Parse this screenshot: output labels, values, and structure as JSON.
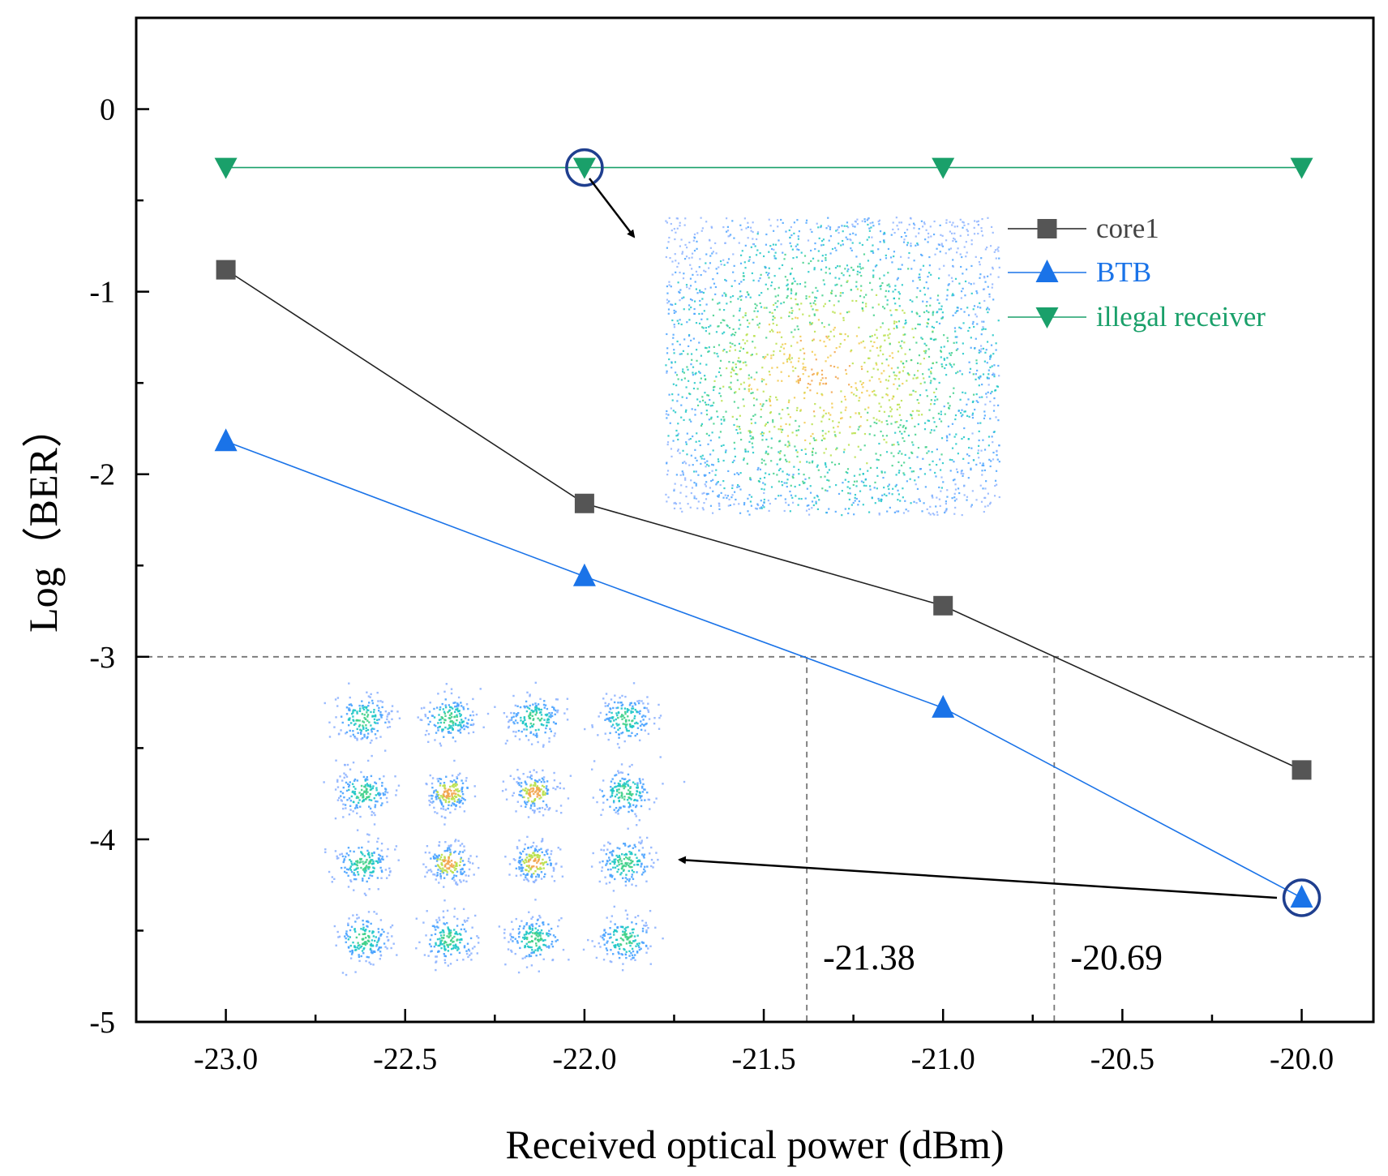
{
  "chart_data": {
    "type": "line",
    "title": "",
    "xlabel": "Received optical power (dBm)",
    "ylabel": "Log（BER）",
    "xlim": [
      -23.25,
      -19.8
    ],
    "ylim": [
      -5,
      0.5
    ],
    "x_ticks": [
      -23.0,
      -22.5,
      -22.0,
      -21.5,
      -21.0,
      -20.5,
      -20.0
    ],
    "x_tick_labels": [
      "-23.0",
      "-22.5",
      "-22.0",
      "-21.5",
      "-21.0",
      "-20.5",
      "-20.0"
    ],
    "y_ticks": [
      0,
      -1,
      -2,
      -3,
      -4,
      -5
    ],
    "y_tick_labels": [
      "0",
      "-1",
      "-2",
      "-3",
      "-4",
      "-5"
    ],
    "grid": false,
    "legend_position": "top-right",
    "series": [
      {
        "name": "core1",
        "marker": "square",
        "color": "#555555",
        "line_color": "#222222",
        "x": [
          -23.0,
          -22.0,
          -21.0,
          -20.0
        ],
        "y": [
          -0.88,
          -2.16,
          -2.72,
          -3.62
        ]
      },
      {
        "name": "BTB",
        "marker": "triangle-up",
        "color": "#1a73e8",
        "line_color": "#1a73e8",
        "x": [
          -23.0,
          -22.0,
          -21.0,
          -20.0
        ],
        "y": [
          -1.82,
          -2.56,
          -3.28,
          -4.32
        ]
      },
      {
        "name": "illegal receiver",
        "marker": "triangle-down",
        "color": "#1aa06a",
        "line_color": "#1aa06a",
        "x": [
          -23.0,
          -22.0,
          -21.0,
          -20.0
        ],
        "y": [
          -0.32,
          -0.32,
          -0.32,
          -0.32
        ]
      }
    ],
    "threshold": {
      "y": -3
    },
    "crossings": [
      {
        "x": -21.38,
        "label": "-21.38"
      },
      {
        "x": -20.69,
        "label": "-20.69"
      }
    ],
    "highlights": [
      {
        "series": "illegal receiver",
        "x": -22.0,
        "y": -0.32
      },
      {
        "series": "BTB",
        "x": -20.0,
        "y": -4.32
      }
    ]
  }
}
